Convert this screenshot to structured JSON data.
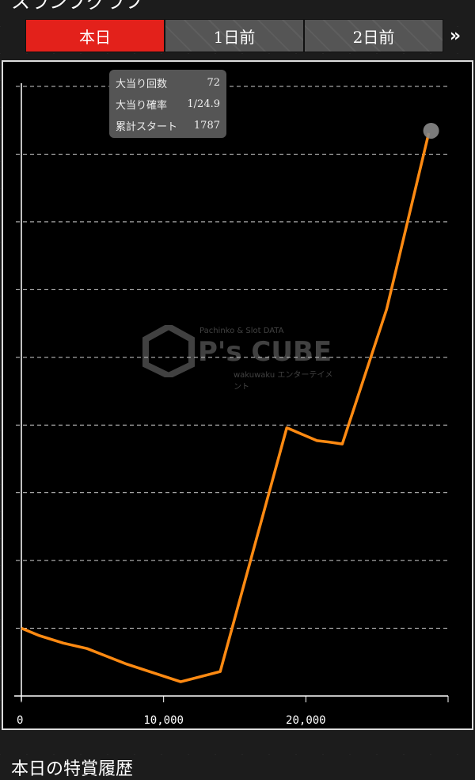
{
  "header": {
    "title": "スランプグラフ"
  },
  "tabs": [
    {
      "label": "本日",
      "active": true
    },
    {
      "label": "1日前",
      "active": false
    },
    {
      "label": "2日前",
      "active": false
    }
  ],
  "more_icon": "double-chevron-right-icon",
  "more_label": "»",
  "tooltip": {
    "rows": [
      {
        "label": "大当り回数",
        "value": "72"
      },
      {
        "label": "大当り確率",
        "value": "1/24.9"
      },
      {
        "label": "累計スタート",
        "value": "1787"
      }
    ]
  },
  "watermark": {
    "line1": "Pachinko & Slot DATA",
    "brand": "P's CUBE",
    "line2": "wakuwaku エンターテイメント"
  },
  "section_title": "本日の特賞履歴",
  "colors": {
    "line": "#ff8a12",
    "active_tab": "#e3211b",
    "endpoint": "#888888"
  },
  "chart_data": {
    "type": "line",
    "title": "",
    "xlabel": "",
    "ylabel": "",
    "xlim": [
      0,
      30000
    ],
    "ylim": [
      0,
      9
    ],
    "xticks": [
      {
        "value": 0,
        "label": "0"
      },
      {
        "value": 10000,
        "label": "10,000"
      },
      {
        "value": 20000,
        "label": "20,000"
      }
    ],
    "y_gridlines": [
      1,
      2,
      3,
      4,
      5,
      6,
      7,
      8,
      9
    ],
    "grid": true,
    "x": [
      0,
      1280,
      2950,
      4620,
      7410,
      11200,
      13980,
      18660,
      20780,
      21620,
      22560,
      25680,
      28640
    ],
    "y": [
      1.0,
      0.89,
      0.78,
      0.7,
      0.47,
      0.21,
      0.36,
      3.96,
      3.77,
      3.75,
      3.72,
      5.71,
      8.31
    ]
  }
}
